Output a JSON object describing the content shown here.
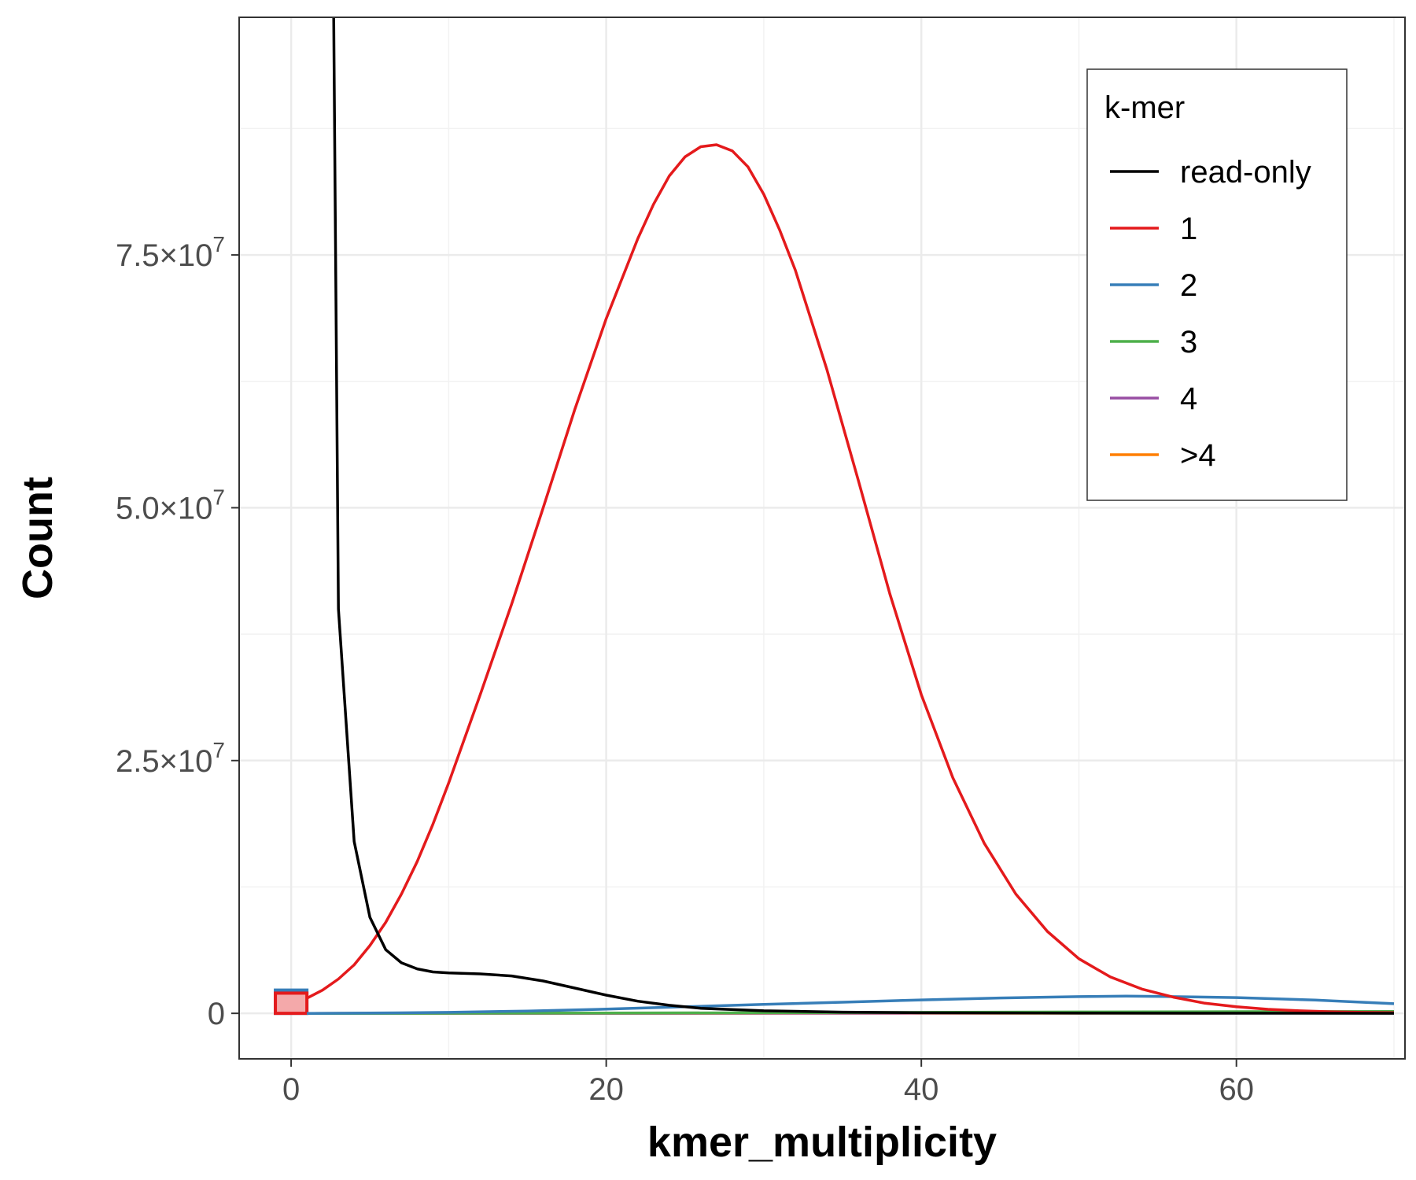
{
  "chart_data": {
    "type": "line",
    "title": "",
    "xlabel": "kmer_multiplicity",
    "ylabel": "Count",
    "xlim": [
      -3.3,
      70.7
    ],
    "ylim": [
      -4500000,
      98500000
    ],
    "x_ticks": [
      {
        "value": 0,
        "label": "0"
      },
      {
        "value": 20,
        "label": "20"
      },
      {
        "value": 40,
        "label": "40"
      },
      {
        "value": 60,
        "label": "60"
      }
    ],
    "y_ticks": [
      {
        "value": 0,
        "mantissa": "0",
        "exponent": ""
      },
      {
        "value": 25000000,
        "mantissa": "2.5×10",
        "exponent": "7"
      },
      {
        "value": 50000000,
        "mantissa": "5.0×10",
        "exponent": "7"
      },
      {
        "value": 75000000,
        "mantissa": "7.5×10",
        "exponent": "7"
      }
    ],
    "grid": true,
    "legend": {
      "title": "k-mer",
      "position": "top-right"
    },
    "series": [
      {
        "name": "read-only",
        "color": "#000000",
        "points": [
          [
            2.7,
            98500000
          ],
          [
            3,
            40000000
          ],
          [
            4,
            17000000
          ],
          [
            5,
            9500000
          ],
          [
            6,
            6300000
          ],
          [
            7,
            5000000
          ],
          [
            8,
            4400000
          ],
          [
            9,
            4100000
          ],
          [
            10,
            4000000
          ],
          [
            12,
            3900000
          ],
          [
            14,
            3700000
          ],
          [
            16,
            3200000
          ],
          [
            18,
            2500000
          ],
          [
            20,
            1800000
          ],
          [
            22,
            1200000
          ],
          [
            24,
            800000
          ],
          [
            26,
            500000
          ],
          [
            30,
            250000
          ],
          [
            35,
            120000
          ],
          [
            40,
            60000
          ],
          [
            50,
            20000
          ],
          [
            70,
            5000
          ]
        ]
      },
      {
        "name": "1",
        "color": "#e41a1c",
        "points": [
          [
            1,
            1500000
          ],
          [
            2,
            2300000
          ],
          [
            3,
            3400000
          ],
          [
            4,
            4800000
          ],
          [
            5,
            6700000
          ],
          [
            6,
            9000000
          ],
          [
            7,
            11800000
          ],
          [
            8,
            15000000
          ],
          [
            9,
            18700000
          ],
          [
            10,
            22800000
          ],
          [
            12,
            31500000
          ],
          [
            14,
            40500000
          ],
          [
            16,
            50000000
          ],
          [
            18,
            59700000
          ],
          [
            20,
            68700000
          ],
          [
            22,
            76600000
          ],
          [
            23,
            80000000
          ],
          [
            24,
            82800000
          ],
          [
            25,
            84700000
          ],
          [
            26,
            85700000
          ],
          [
            27,
            85900000
          ],
          [
            28,
            85300000
          ],
          [
            29,
            83700000
          ],
          [
            30,
            81000000
          ],
          [
            31,
            77500000
          ],
          [
            32,
            73500000
          ],
          [
            34,
            63700000
          ],
          [
            36,
            52700000
          ],
          [
            38,
            41500000
          ],
          [
            40,
            31500000
          ],
          [
            42,
            23300000
          ],
          [
            44,
            16800000
          ],
          [
            46,
            11800000
          ],
          [
            48,
            8100000
          ],
          [
            50,
            5400000
          ],
          [
            52,
            3600000
          ],
          [
            54,
            2400000
          ],
          [
            56,
            1600000
          ],
          [
            58,
            1000000
          ],
          [
            60,
            650000
          ],
          [
            62,
            400000
          ],
          [
            64,
            250000
          ],
          [
            66,
            160000
          ],
          [
            68,
            100000
          ],
          [
            70,
            70000
          ]
        ]
      },
      {
        "name": "2",
        "color": "#377eb8",
        "points": [
          [
            1,
            0
          ],
          [
            5,
            30000
          ],
          [
            10,
            100000
          ],
          [
            15,
            230000
          ],
          [
            20,
            420000
          ],
          [
            25,
            650000
          ],
          [
            30,
            880000
          ],
          [
            35,
            1100000
          ],
          [
            40,
            1330000
          ],
          [
            45,
            1520000
          ],
          [
            50,
            1650000
          ],
          [
            53,
            1700000
          ],
          [
            55,
            1680000
          ],
          [
            60,
            1560000
          ],
          [
            65,
            1310000
          ],
          [
            70,
            950000
          ]
        ]
      },
      {
        "name": "3",
        "color": "#4daf4a",
        "points": [
          [
            1,
            0
          ],
          [
            10,
            10000
          ],
          [
            20,
            30000
          ],
          [
            30,
            60000
          ],
          [
            40,
            100000
          ],
          [
            50,
            140000
          ],
          [
            60,
            170000
          ],
          [
            70,
            190000
          ]
        ]
      },
      {
        "name": "4",
        "color": "#984ea3",
        "points": [
          [
            1,
            0
          ],
          [
            20,
            8000
          ],
          [
            40,
            25000
          ],
          [
            60,
            40000
          ],
          [
            70,
            45000
          ]
        ]
      },
      {
        "name": ">4",
        "color": "#ff7f00",
        "points": [
          [
            1,
            0
          ],
          [
            20,
            5000
          ],
          [
            40,
            15000
          ],
          [
            60,
            25000
          ],
          [
            70,
            30000
          ]
        ]
      }
    ],
    "bar_at_zero": {
      "x_range": [
        -1,
        1
      ],
      "series": [
        {
          "name": "2",
          "color": "#377eb8",
          "value": 2300000
        },
        {
          "name": "1",
          "color": "#e41a1c",
          "value": 2000000
        }
      ]
    }
  }
}
